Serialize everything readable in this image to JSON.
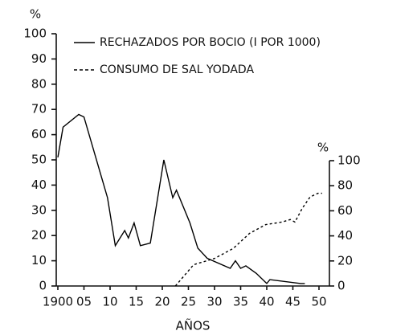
{
  "chart_data": {
    "type": "line",
    "ylabel": "%",
    "y2label": "%",
    "xlabel": "AÑOS",
    "xlim": [
      1900,
      1952
    ],
    "xticks": [
      1900,
      {
        "value": 1905,
        "label": "05"
      },
      {
        "value": 1910,
        "label": "10"
      },
      {
        "value": 1915,
        "label": "15"
      },
      {
        "value": 1920,
        "label": "20"
      },
      {
        "value": 1925,
        "label": "25"
      },
      {
        "value": 1930,
        "label": "30"
      },
      {
        "value": 1935,
        "label": "35"
      },
      {
        "value": 1940,
        "label": "40"
      },
      {
        "value": 1945,
        "label": "45"
      },
      {
        "value": 1950,
        "label": "50"
      }
    ],
    "ylim": [
      0,
      100
    ],
    "yticks": [
      0,
      10,
      20,
      30,
      40,
      50,
      60,
      70,
      80,
      90,
      100
    ],
    "y2lim": [
      0,
      100
    ],
    "y2ticks": [
      0,
      20,
      40,
      60,
      80,
      100
    ],
    "series": [
      {
        "name": "RECHAZADOS POR BOCIO (I POR 1000)",
        "color": "#000000",
        "dash": false,
        "x": [
          1900,
          1901,
          1904,
          1905,
          1909.5,
          1911,
          1912.8,
          1913.5,
          1914.6,
          1915.8,
          1917.7,
          1920.3,
          1922,
          1922.7,
          1925.3,
          1926.8,
          1928.6,
          1933,
          1934,
          1935,
          1936,
          1938,
          1940,
          1940.6,
          1946.5,
          1947.3
        ],
        "values": [
          51,
          63,
          68,
          67,
          35,
          16,
          22,
          19,
          25,
          16,
          17,
          50,
          35,
          38,
          25,
          15,
          11,
          7,
          10,
          7,
          8,
          5,
          1,
          2.5,
          1,
          1
        ]
      },
      {
        "name": "CONSUMO DE SAL YODADA",
        "color": "#000000",
        "dash": true,
        "axis": "y2",
        "x": [
          1922.5,
          1926,
          1930,
          1933.6,
          1936.7,
          1939.8,
          1942.9,
          1944.5,
          1945.4,
          1946.8,
          1948.3,
          1949.8,
          1950.6
        ],
        "values": [
          0,
          17,
          22,
          30,
          42,
          49,
          51,
          53,
          51,
          62,
          71,
          74,
          74
        ]
      }
    ]
  }
}
